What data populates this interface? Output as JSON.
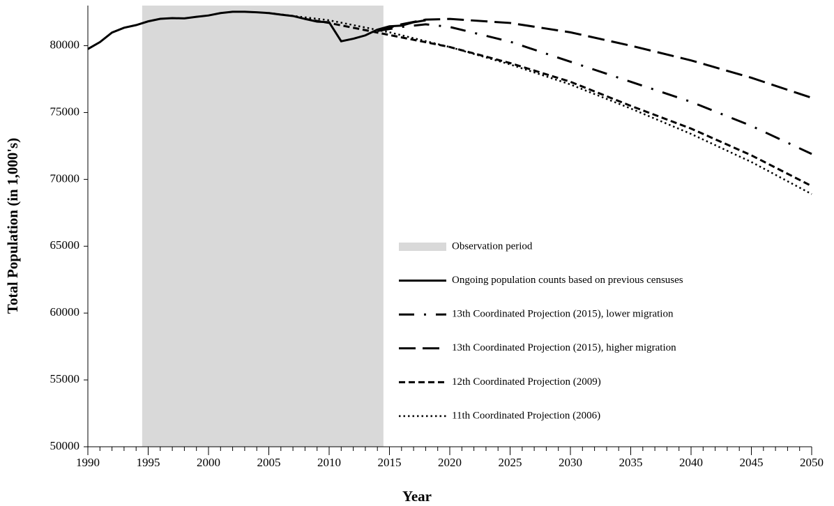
{
  "chart_data": {
    "type": "line",
    "x_label": "Year",
    "y_label": "Total Population (in 1,000's)",
    "xlim": [
      1990,
      2050
    ],
    "xticks": [
      1990,
      1995,
      2000,
      2005,
      2010,
      2015,
      2020,
      2025,
      2030,
      2035,
      2040,
      2045,
      2050
    ],
    "minor_tick_step": 1,
    "ylim": [
      50000,
      83000
    ],
    "yticks": [
      50000,
      55000,
      60000,
      65000,
      70000,
      75000,
      80000
    ],
    "grid": false,
    "legend": "lower right",
    "shaded_span": {
      "name": "Observation period",
      "x": [
        1994.5,
        2014.5
      ],
      "color": "#d9d9d9"
    },
    "series": [
      {
        "name": "Ongoing population counts based on previous censuses",
        "color": "#000000",
        "line_style": "solid",
        "x": [
          1990,
          1991,
          1992,
          1993,
          1994,
          1995,
          1996,
          1997,
          1998,
          1999,
          2000,
          2001,
          2002,
          2003,
          2004,
          2005,
          2006,
          2007,
          2008,
          2009,
          2010,
          2011,
          2012,
          2013,
          2014,
          2015,
          2016,
          2017,
          2018
        ],
        "values": [
          79750,
          80270,
          80980,
          81340,
          81540,
          81820,
          82010,
          82060,
          82040,
          82160,
          82260,
          82440,
          82540,
          82540,
          82500,
          82440,
          82320,
          82220,
          82000,
          81800,
          81750,
          80330,
          80520,
          80770,
          81200,
          81450,
          81500,
          81750,
          81900
        ]
      },
      {
        "name": "13th Coordinated Projection (2015), lower migration",
        "color": "#000000",
        "line_style": "dash-dot",
        "x": [
          2014,
          2016,
          2018,
          2020,
          2025,
          2030,
          2035,
          2040,
          2045,
          2050
        ],
        "values": [
          81100,
          81400,
          81600,
          81400,
          80300,
          78800,
          77300,
          75800,
          74000,
          71900
        ]
      },
      {
        "name": "13th Coordinated Projection (2015), higher migration",
        "color": "#000000",
        "line_style": "long-dash",
        "x": [
          2014,
          2016,
          2018,
          2020,
          2025,
          2030,
          2035,
          2040,
          2045,
          2050
        ],
        "values": [
          81100,
          81600,
          81950,
          82000,
          81700,
          81000,
          80000,
          78900,
          77600,
          76100
        ]
      },
      {
        "name": "12th Coordinated Projection (2009)",
        "color": "#000000",
        "line_style": "dash",
        "x": [
          2008,
          2010,
          2015,
          2020,
          2025,
          2030,
          2035,
          2040,
          2045,
          2050
        ],
        "values": [
          82000,
          81700,
          80800,
          79900,
          78700,
          77300,
          75500,
          73800,
          71800,
          69500
        ]
      },
      {
        "name": "11th Coordinated Projection (2006)",
        "color": "#000000",
        "line_style": "dot",
        "x": [
          2005,
          2010,
          2015,
          2020,
          2025,
          2030,
          2035,
          2040,
          2045,
          2050
        ],
        "values": [
          82450,
          81900,
          81000,
          79900,
          78600,
          77100,
          75300,
          73400,
          71300,
          68900
        ]
      }
    ]
  }
}
